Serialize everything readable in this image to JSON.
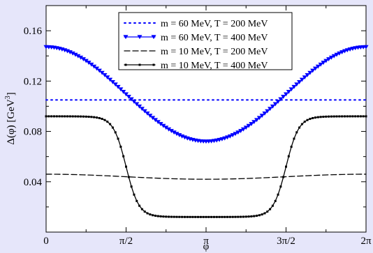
{
  "chart_data": {
    "type": "line",
    "xlabel": "φ",
    "ylabel": "Δ(φ) [GeV",
    "ylabel_superscript": "3",
    "ylabel_close": "]",
    "xlim": [
      0,
      6.2832
    ],
    "ylim": [
      0,
      0.18
    ],
    "x_ticks": [
      {
        "value": 0,
        "label": "0"
      },
      {
        "value": 1.5708,
        "label": "π/2"
      },
      {
        "value": 3.1416,
        "label": "π"
      },
      {
        "value": 4.7124,
        "label": "3π/2"
      },
      {
        "value": 6.2832,
        "label": "2π"
      }
    ],
    "y_ticks": [
      {
        "value": 0.04,
        "label": "0.04"
      },
      {
        "value": 0.08,
        "label": "0.08"
      },
      {
        "value": 0.12,
        "label": "0.12"
      },
      {
        "value": 0.16,
        "label": "0.16"
      }
    ],
    "legend_position": "top-right",
    "grid": false,
    "series": [
      {
        "name": "m = 60 MeV, T = 200 MeV",
        "color": "#0000ff",
        "style": "dotted",
        "marker": "none",
        "base": 0.105,
        "amp": 0.0,
        "sharpness": 1
      },
      {
        "name": "m = 60 MeV, T = 400 MeV",
        "color": "#0000ff",
        "style": "solid",
        "marker": "triangle-down",
        "base": 0.1095,
        "amp": 0.0375,
        "sharpness": 1
      },
      {
        "name": "m = 10 MeV, T = 200 MeV",
        "color": "#000000",
        "style": "dashed",
        "marker": "none",
        "base": 0.044,
        "amp": 0.002,
        "sharpness": 1
      },
      {
        "name": "m = 10 MeV, T = 400 MeV",
        "color": "#000000",
        "style": "solid",
        "marker": "square",
        "base": 0.052,
        "amp": 0.04,
        "sharpness": 4
      }
    ]
  }
}
